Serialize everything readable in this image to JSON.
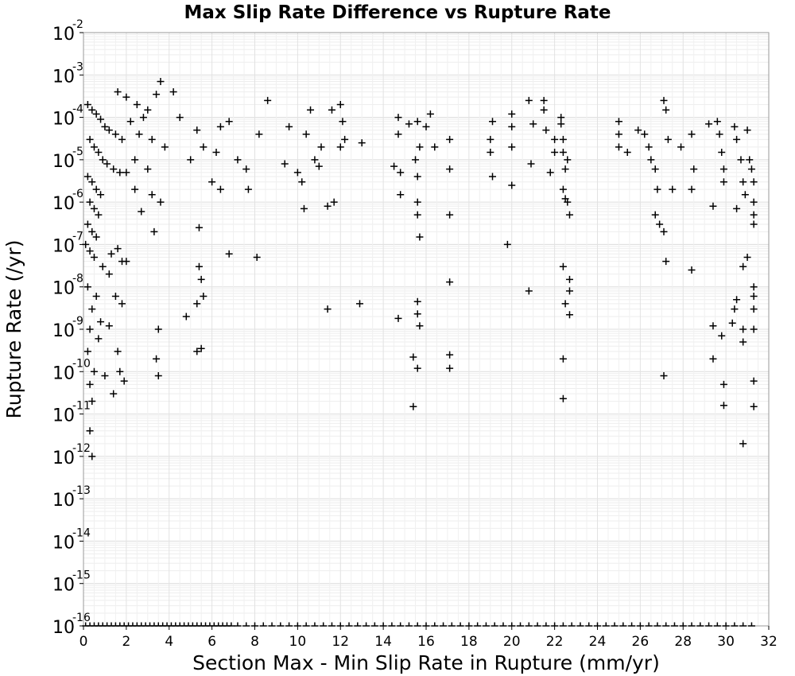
{
  "chart_data": {
    "type": "scatter",
    "title": "Max Slip Rate Difference vs Rupture Rate",
    "xlabel": "Section Max - Min Slip Rate in Rupture (mm/yr)",
    "ylabel": "Rupture Rate (/yr)",
    "xlim": [
      0,
      32
    ],
    "ylim": [
      1e-16,
      0.01
    ],
    "yscale": "log",
    "grid": true,
    "marker": "+",
    "x_ticks": [
      0,
      2,
      4,
      6,
      8,
      10,
      12,
      14,
      16,
      18,
      20,
      22,
      24,
      26,
      28,
      30,
      32
    ],
    "y_tick_labels": [
      {
        "base": "10",
        "exp": "-2"
      },
      {
        "base": "10",
        "exp": "-3"
      },
      {
        "base": "10",
        "exp": "-4"
      },
      {
        "base": "10",
        "exp": "-5"
      },
      {
        "base": "10",
        "exp": "-6"
      },
      {
        "base": "10",
        "exp": "-7"
      },
      {
        "base": "10",
        "exp": "-8"
      },
      {
        "base": "10",
        "exp": "-9"
      },
      {
        "base": "10",
        "exp": "-10"
      },
      {
        "base": "10",
        "exp": "-11"
      },
      {
        "base": "10",
        "exp": "-12"
      },
      {
        "base": "10",
        "exp": "-13"
      },
      {
        "base": "10",
        "exp": "-14"
      },
      {
        "base": "10",
        "exp": "-15"
      },
      {
        "base": "10",
        "exp": "-16"
      }
    ],
    "series": [
      {
        "points": [
          [
            0.2,
            0.0002
          ],
          [
            0.4,
            0.00015
          ],
          [
            0.6,
            0.00012
          ],
          [
            0.8,
            9e-05
          ],
          [
            1.0,
            6e-05
          ],
          [
            1.2,
            5e-05
          ],
          [
            1.5,
            4e-05
          ],
          [
            1.8,
            3e-05
          ],
          [
            0.3,
            3e-05
          ],
          [
            0.5,
            2e-05
          ],
          [
            0.7,
            1.5e-05
          ],
          [
            0.9,
            1e-05
          ],
          [
            1.1,
            8e-06
          ],
          [
            1.4,
            6e-06
          ],
          [
            1.7,
            5e-06
          ],
          [
            0.2,
            4e-06
          ],
          [
            0.4,
            3e-06
          ],
          [
            0.6,
            2e-06
          ],
          [
            0.8,
            1.5e-06
          ],
          [
            0.3,
            1e-06
          ],
          [
            0.5,
            7e-07
          ],
          [
            0.7,
            5e-07
          ],
          [
            0.2,
            3e-07
          ],
          [
            0.4,
            2e-07
          ],
          [
            0.6,
            1.5e-07
          ],
          [
            0.1,
            1e-07
          ],
          [
            0.3,
            7e-08
          ],
          [
            0.5,
            5e-08
          ],
          [
            0.9,
            3e-08
          ],
          [
            1.2,
            2e-08
          ],
          [
            0.2,
            1e-08
          ],
          [
            0.6,
            6e-09
          ],
          [
            0.4,
            3e-09
          ],
          [
            0.8,
            1.5e-09
          ],
          [
            0.3,
            1e-09
          ],
          [
            0.7,
            6e-10
          ],
          [
            0.2,
            3e-10
          ],
          [
            0.5,
            1e-10
          ],
          [
            0.3,
            5e-11
          ],
          [
            0.4,
            2e-11
          ],
          [
            0.3,
            4e-12
          ],
          [
            0.4,
            1e-12
          ],
          [
            1.6,
            8e-08
          ],
          [
            1.8,
            4e-08
          ],
          [
            1.3,
            6e-08
          ],
          [
            1.5,
            6e-09
          ],
          [
            1.8,
            4e-09
          ],
          [
            1.2,
            1.2e-09
          ],
          [
            1.6,
            3e-10
          ],
          [
            1.9,
            6e-11
          ],
          [
            1.4,
            3e-11
          ],
          [
            1.0,
            8e-11
          ],
          [
            1.7,
            1e-10
          ],
          [
            1.6,
            0.0004
          ],
          [
            2.0,
            0.0003
          ],
          [
            2.5,
            0.0002
          ],
          [
            3.0,
            0.00015
          ],
          [
            3.6,
            0.0007
          ],
          [
            4.2,
            0.0004
          ],
          [
            3.4,
            0.00035
          ],
          [
            2.8,
            0.0001
          ],
          [
            2.2,
            8e-05
          ],
          [
            2.6,
            4e-05
          ],
          [
            3.2,
            3e-05
          ],
          [
            3.8,
            2e-05
          ],
          [
            4.5,
            0.0001
          ],
          [
            2.4,
            1e-05
          ],
          [
            3.0,
            6e-06
          ],
          [
            2.0,
            5e-06
          ],
          [
            2.4,
            2e-06
          ],
          [
            3.2,
            1.5e-06
          ],
          [
            3.6,
            1e-06
          ],
          [
            2.7,
            6e-07
          ],
          [
            3.3,
            2e-07
          ],
          [
            2.0,
            4e-08
          ],
          [
            3.5,
            1e-09
          ],
          [
            3.4,
            2e-10
          ],
          [
            3.5,
            8e-11
          ],
          [
            4.8,
            2e-09
          ],
          [
            5.4,
            3e-08
          ],
          [
            5.5,
            1.5e-08
          ],
          [
            5.3,
            4e-09
          ],
          [
            5.6,
            6e-09
          ],
          [
            5.3,
            3e-10
          ],
          [
            5.5,
            3.5e-10
          ],
          [
            5.4,
            2.5e-07
          ],
          [
            5.0,
            1e-05
          ],
          [
            5.3,
            5e-05
          ],
          [
            5.6,
            2e-05
          ],
          [
            6.0,
            3e-06
          ],
          [
            6.2,
            1.5e-05
          ],
          [
            6.4,
            6e-05
          ],
          [
            6.8,
            8e-05
          ],
          [
            7.2,
            1e-05
          ],
          [
            7.6,
            6e-06
          ],
          [
            6.8,
            6e-08
          ],
          [
            8.1,
            5e-08
          ],
          [
            7.7,
            2e-06
          ],
          [
            8.2,
            4e-05
          ],
          [
            8.6,
            0.00025
          ],
          [
            6.4,
            2e-06
          ],
          [
            9.4,
            8e-06
          ],
          [
            9.6,
            6e-05
          ],
          [
            10.0,
            5e-06
          ],
          [
            10.2,
            3e-06
          ],
          [
            10.6,
            0.00015
          ],
          [
            10.4,
            4e-05
          ],
          [
            10.8,
            1e-05
          ],
          [
            11.0,
            7e-06
          ],
          [
            11.1,
            2e-05
          ],
          [
            11.6,
            0.00015
          ],
          [
            11.4,
            8e-07
          ],
          [
            11.7,
            1e-06
          ],
          [
            10.3,
            7e-07
          ],
          [
            11.4,
            3e-09
          ],
          [
            12.0,
            0.0002
          ],
          [
            12.1,
            8e-05
          ],
          [
            12.2,
            3e-05
          ],
          [
            12.0,
            2e-05
          ],
          [
            13.0,
            2.5e-05
          ],
          [
            12.9,
            4e-09
          ],
          [
            14.7,
            0.0001
          ],
          [
            14.7,
            4e-05
          ],
          [
            14.5,
            7e-06
          ],
          [
            14.8,
            5e-06
          ],
          [
            14.8,
            1.5e-06
          ],
          [
            14.7,
            1.8e-09
          ],
          [
            15.2,
            7e-05
          ],
          [
            15.6,
            8e-05
          ],
          [
            16.0,
            6e-05
          ],
          [
            16.2,
            0.00012
          ],
          [
            15.7,
            2e-05
          ],
          [
            15.5,
            1e-05
          ],
          [
            15.6,
            4e-06
          ],
          [
            15.6,
            1e-06
          ],
          [
            15.6,
            5e-07
          ],
          [
            15.7,
            1.5e-07
          ],
          [
            15.6,
            4.5e-09
          ],
          [
            15.6,
            2.3e-09
          ],
          [
            15.7,
            1.2e-09
          ],
          [
            15.4,
            2.2e-10
          ],
          [
            15.6,
            1.2e-10
          ],
          [
            15.4,
            1.5e-11
          ],
          [
            16.4,
            2e-05
          ],
          [
            17.1,
            3e-05
          ],
          [
            17.1,
            6e-06
          ],
          [
            17.1,
            5e-07
          ],
          [
            17.1,
            1.3e-08
          ],
          [
            17.1,
            2.5e-10
          ],
          [
            17.1,
            1.2e-10
          ],
          [
            19.1,
            8e-05
          ],
          [
            19.0,
            3e-05
          ],
          [
            19.0,
            1.5e-05
          ],
          [
            19.1,
            4e-06
          ],
          [
            19.8,
            1e-07
          ],
          [
            20.0,
            0.00012
          ],
          [
            20.0,
            6e-05
          ],
          [
            20.0,
            2e-05
          ],
          [
            20.0,
            2.5e-06
          ],
          [
            20.8,
            0.00025
          ],
          [
            21.0,
            7e-05
          ],
          [
            21.5,
            0.00025
          ],
          [
            21.5,
            0.00015
          ],
          [
            21.6,
            5e-05
          ],
          [
            22.0,
            3e-05
          ],
          [
            22.0,
            1.5e-05
          ],
          [
            21.8,
            5e-06
          ],
          [
            20.9,
            8e-06
          ],
          [
            22.3,
            0.0001
          ],
          [
            22.3,
            7e-05
          ],
          [
            22.4,
            3e-05
          ],
          [
            22.4,
            1.5e-05
          ],
          [
            22.6,
            1e-05
          ],
          [
            22.5,
            6e-06
          ],
          [
            22.4,
            2e-06
          ],
          [
            22.5,
            1.2e-06
          ],
          [
            22.6,
            1e-06
          ],
          [
            22.7,
            5e-07
          ],
          [
            20.8,
            8e-09
          ],
          [
            22.4,
            3e-08
          ],
          [
            22.7,
            1.5e-08
          ],
          [
            22.7,
            8e-09
          ],
          [
            22.5,
            4e-09
          ],
          [
            22.7,
            2.2e-09
          ],
          [
            22.4,
            2e-10
          ],
          [
            22.4,
            2.3e-11
          ],
          [
            25.0,
            8e-05
          ],
          [
            25.0,
            4e-05
          ],
          [
            25.0,
            2e-05
          ],
          [
            25.4,
            1.5e-05
          ],
          [
            25.9,
            5e-05
          ],
          [
            26.2,
            4e-05
          ],
          [
            26.4,
            2e-05
          ],
          [
            26.5,
            1e-05
          ],
          [
            26.7,
            6e-06
          ],
          [
            26.8,
            2e-06
          ],
          [
            26.7,
            5e-07
          ],
          [
            26.9,
            3e-07
          ],
          [
            27.1,
            2e-07
          ],
          [
            27.1,
            0.00025
          ],
          [
            27.2,
            0.00015
          ],
          [
            27.3,
            3e-05
          ],
          [
            27.5,
            2e-06
          ],
          [
            27.9,
            2e-05
          ],
          [
            28.4,
            4e-05
          ],
          [
            28.5,
            6e-06
          ],
          [
            28.4,
            2e-06
          ],
          [
            28.4,
            2.5e-08
          ],
          [
            27.2,
            4e-08
          ],
          [
            27.1,
            8e-11
          ],
          [
            29.2,
            7e-05
          ],
          [
            29.6,
            8e-05
          ],
          [
            29.7,
            4e-05
          ],
          [
            29.8,
            1.5e-05
          ],
          [
            29.9,
            6e-06
          ],
          [
            29.9,
            3e-06
          ],
          [
            30.4,
            6e-05
          ],
          [
            30.5,
            3e-05
          ],
          [
            30.7,
            1e-05
          ],
          [
            30.8,
            3e-06
          ],
          [
            30.9,
            1.5e-06
          ],
          [
            31.0,
            5e-05
          ],
          [
            31.1,
            1e-05
          ],
          [
            31.2,
            6e-06
          ],
          [
            31.3,
            3e-06
          ],
          [
            31.3,
            1e-06
          ],
          [
            31.3,
            5e-07
          ],
          [
            31.3,
            3e-07
          ],
          [
            31.0,
            5e-08
          ],
          [
            30.8,
            3e-08
          ],
          [
            31.3,
            1e-08
          ],
          [
            31.3,
            6e-09
          ],
          [
            31.3,
            3e-09
          ],
          [
            31.3,
            1e-09
          ],
          [
            30.8,
            1e-09
          ],
          [
            30.5,
            5e-09
          ],
          [
            30.4,
            3e-09
          ],
          [
            29.4,
            1.2e-09
          ],
          [
            29.8,
            7e-10
          ],
          [
            30.3,
            1.4e-09
          ],
          [
            30.8,
            5e-10
          ],
          [
            29.4,
            2e-10
          ],
          [
            29.9,
            5e-11
          ],
          [
            29.9,
            1.6e-11
          ],
          [
            31.3,
            6e-11
          ],
          [
            31.3,
            1.5e-11
          ],
          [
            30.8,
            2e-12
          ],
          [
            30.5,
            7e-07
          ],
          [
            29.4,
            8e-07
          ]
        ]
      }
    ],
    "zero_rate_x": [
      0.1,
      0.3,
      0.5,
      0.7,
      0.9,
      1.1,
      1.3,
      1.5,
      1.7,
      1.9,
      2.1,
      2.3,
      2.5,
      2.7,
      2.9,
      3.1,
      3.3,
      3.5,
      3.7,
      3.9,
      4.1,
      4.3,
      4.5,
      4.7,
      4.9,
      5.1,
      5.3,
      5.5,
      5.7,
      5.9,
      6.1,
      6.3,
      6.5,
      6.7,
      6.9,
      7.2,
      7.6,
      8.0,
      8.4,
      8.8,
      9.2,
      9.6,
      10.0,
      10.4,
      10.8,
      11.2,
      11.6,
      12.0,
      12.4,
      12.8,
      13.2,
      13.6,
      14.0,
      14.4,
      14.8,
      15.2,
      15.6,
      16.0,
      16.4,
      16.8,
      17.2,
      17.6,
      18.0,
      18.4,
      18.8,
      19.2,
      19.6,
      20.0,
      20.4,
      20.8,
      21.2,
      21.6,
      22.0,
      22.4,
      22.8,
      23.2,
      23.6,
      24.0,
      24.4,
      24.8,
      25.2,
      25.6,
      26.0,
      26.4,
      26.8,
      27.2,
      27.6,
      28.0,
      28.4,
      28.8,
      29.2,
      29.6,
      30.0,
      30.4,
      30.8,
      31.2
    ]
  }
}
